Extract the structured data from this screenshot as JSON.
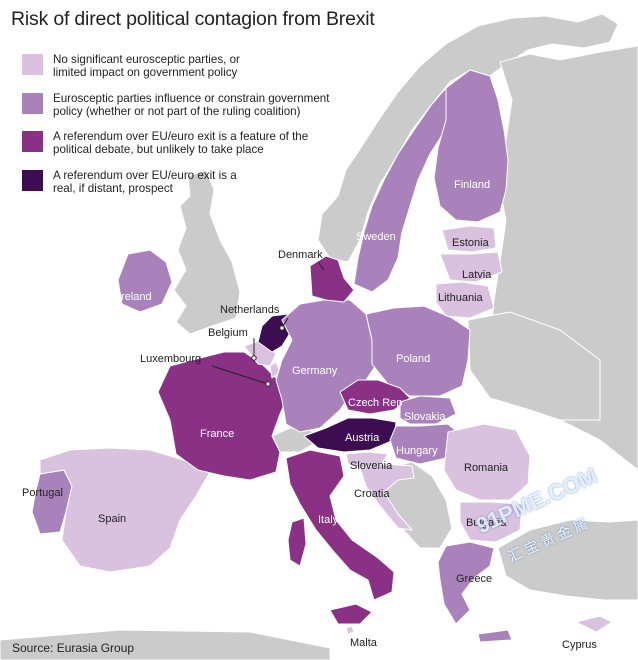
{
  "title": "Risk of direct political contagion from Brexit",
  "source": "Source: Eurasia Group",
  "colors": {
    "land_other": "#cbcbcb",
    "border": "#ffffff",
    "level1": "#d9c1df",
    "level2": "#a982bc",
    "level3": "#8a3186",
    "level4": "#3d0d52"
  },
  "legend": [
    {
      "level": "level1",
      "line1": "No significant eurosceptic parties, or",
      "line2": "limited impact on government policy"
    },
    {
      "level": "level2",
      "line1": "Eurosceptic parties influence or constrain government",
      "line2": "policy (whether or not part of the ruling coalition)"
    },
    {
      "level": "level3",
      "line1": "A referendum over EU/euro exit is a feature of the",
      "line2": "political debate, but unlikely to take place"
    },
    {
      "level": "level4",
      "line1": "A referendum over EU/euro exit is a",
      "line2": "real, if distant, prospect"
    }
  ],
  "countries": [
    {
      "name": "Ireland",
      "level": "level2"
    },
    {
      "name": "Portugal",
      "level": "level2"
    },
    {
      "name": "Spain",
      "level": "level1"
    },
    {
      "name": "France",
      "level": "level3"
    },
    {
      "name": "Belgium",
      "level": "level1"
    },
    {
      "name": "Luxembourg",
      "level": "level1"
    },
    {
      "name": "Netherlands",
      "level": "level4"
    },
    {
      "name": "Germany",
      "level": "level2"
    },
    {
      "name": "Denmark",
      "level": "level3"
    },
    {
      "name": "Sweden",
      "level": "level2"
    },
    {
      "name": "Finland",
      "level": "level2"
    },
    {
      "name": "Estonia",
      "level": "level1"
    },
    {
      "name": "Latvia",
      "level": "level1"
    },
    {
      "name": "Lithuania",
      "level": "level1"
    },
    {
      "name": "Poland",
      "level": "level2"
    },
    {
      "name": "Czech Rep",
      "level": "level3"
    },
    {
      "name": "Slovakia",
      "level": "level2"
    },
    {
      "name": "Austria",
      "level": "level4"
    },
    {
      "name": "Hungary",
      "level": "level2"
    },
    {
      "name": "Slovenia",
      "level": "level1"
    },
    {
      "name": "Croatia",
      "level": "level1"
    },
    {
      "name": "Romania",
      "level": "level1"
    },
    {
      "name": "Bulgaria",
      "level": "level1"
    },
    {
      "name": "Italy",
      "level": "level3"
    },
    {
      "name": "Greece",
      "level": "level2"
    },
    {
      "name": "Malta",
      "level": "level1"
    },
    {
      "name": "Cyprus",
      "level": "level1"
    }
  ],
  "watermark": {
    "text": "91PME.COM",
    "sub": "汇 宝 贵 金 属"
  }
}
